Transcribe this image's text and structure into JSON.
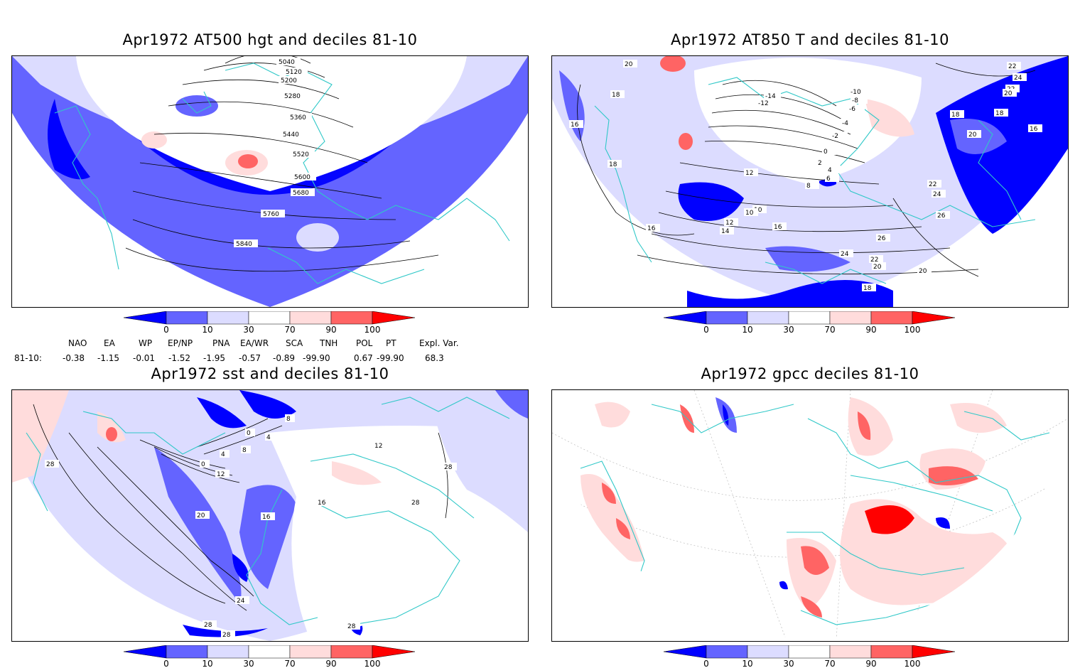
{
  "panels": [
    {
      "title": "Apr1972 AT500 hgt and deciles 81-10",
      "contour_labels": [
        "5040",
        "5120",
        "5200",
        "5280",
        "5360",
        "5440",
        "5520",
        "5600",
        "5680",
        "5760",
        "5840"
      ]
    },
    {
      "title": "Apr1972 AT850 T and deciles 81-10",
      "contour_labels": [
        "20",
        "18",
        "16",
        "18",
        "22",
        "24",
        "22",
        "20",
        "18",
        "16",
        "18",
        "20",
        "-14",
        "-12",
        "-10",
        "-8",
        "-6",
        "-4",
        "-2",
        "0",
        "2",
        "4",
        "6",
        "8",
        "10",
        "12",
        "14",
        "16",
        "22",
        "24",
        "26",
        "26",
        "24",
        "22",
        "20",
        "20",
        "18",
        "16",
        "12",
        "10"
      ]
    },
    {
      "title": "Apr1972 sst and deciles 81-10",
      "contour_labels": [
        "28",
        "0",
        "4",
        "8",
        "12",
        "16",
        "20",
        "24",
        "28",
        "28",
        "28",
        "16",
        "28",
        "0",
        "4",
        "8",
        "12",
        "28"
      ]
    },
    {
      "title": "Apr1972 gpcc deciles 81-10",
      "contour_labels": []
    }
  ],
  "colorbar": {
    "ticks": [
      "0",
      "10",
      "30",
      "70",
      "90",
      "100"
    ],
    "colors": [
      "#0000ff",
      "#6464ff",
      "#dcdcff",
      "#ffffff",
      "#ffdcdc",
      "#ff6464",
      "#ff0000"
    ]
  },
  "indices": {
    "headers": [
      "NAO",
      "EA",
      "WP",
      "EP/NP",
      "PNA",
      "EA/WR",
      "SCA",
      "TNH",
      "POL",
      "PT",
      "Expl. Var."
    ],
    "row_label": "81-10:",
    "values": [
      "-0.38",
      "-1.15",
      "-0.01",
      "-1.52",
      "-1.95",
      "-0.57",
      "-0.89",
      "-99.90",
      "0.67",
      "-99.90",
      "68.3"
    ]
  },
  "map_colors": {
    "coast": "#30c8c8",
    "deep_blue": "#0000ff",
    "mid_blue": "#6464ff",
    "light_blue": "#dcdcff",
    "light_red": "#ffdcdc",
    "mid_red": "#ff6464",
    "deep_red": "#ff0000"
  }
}
